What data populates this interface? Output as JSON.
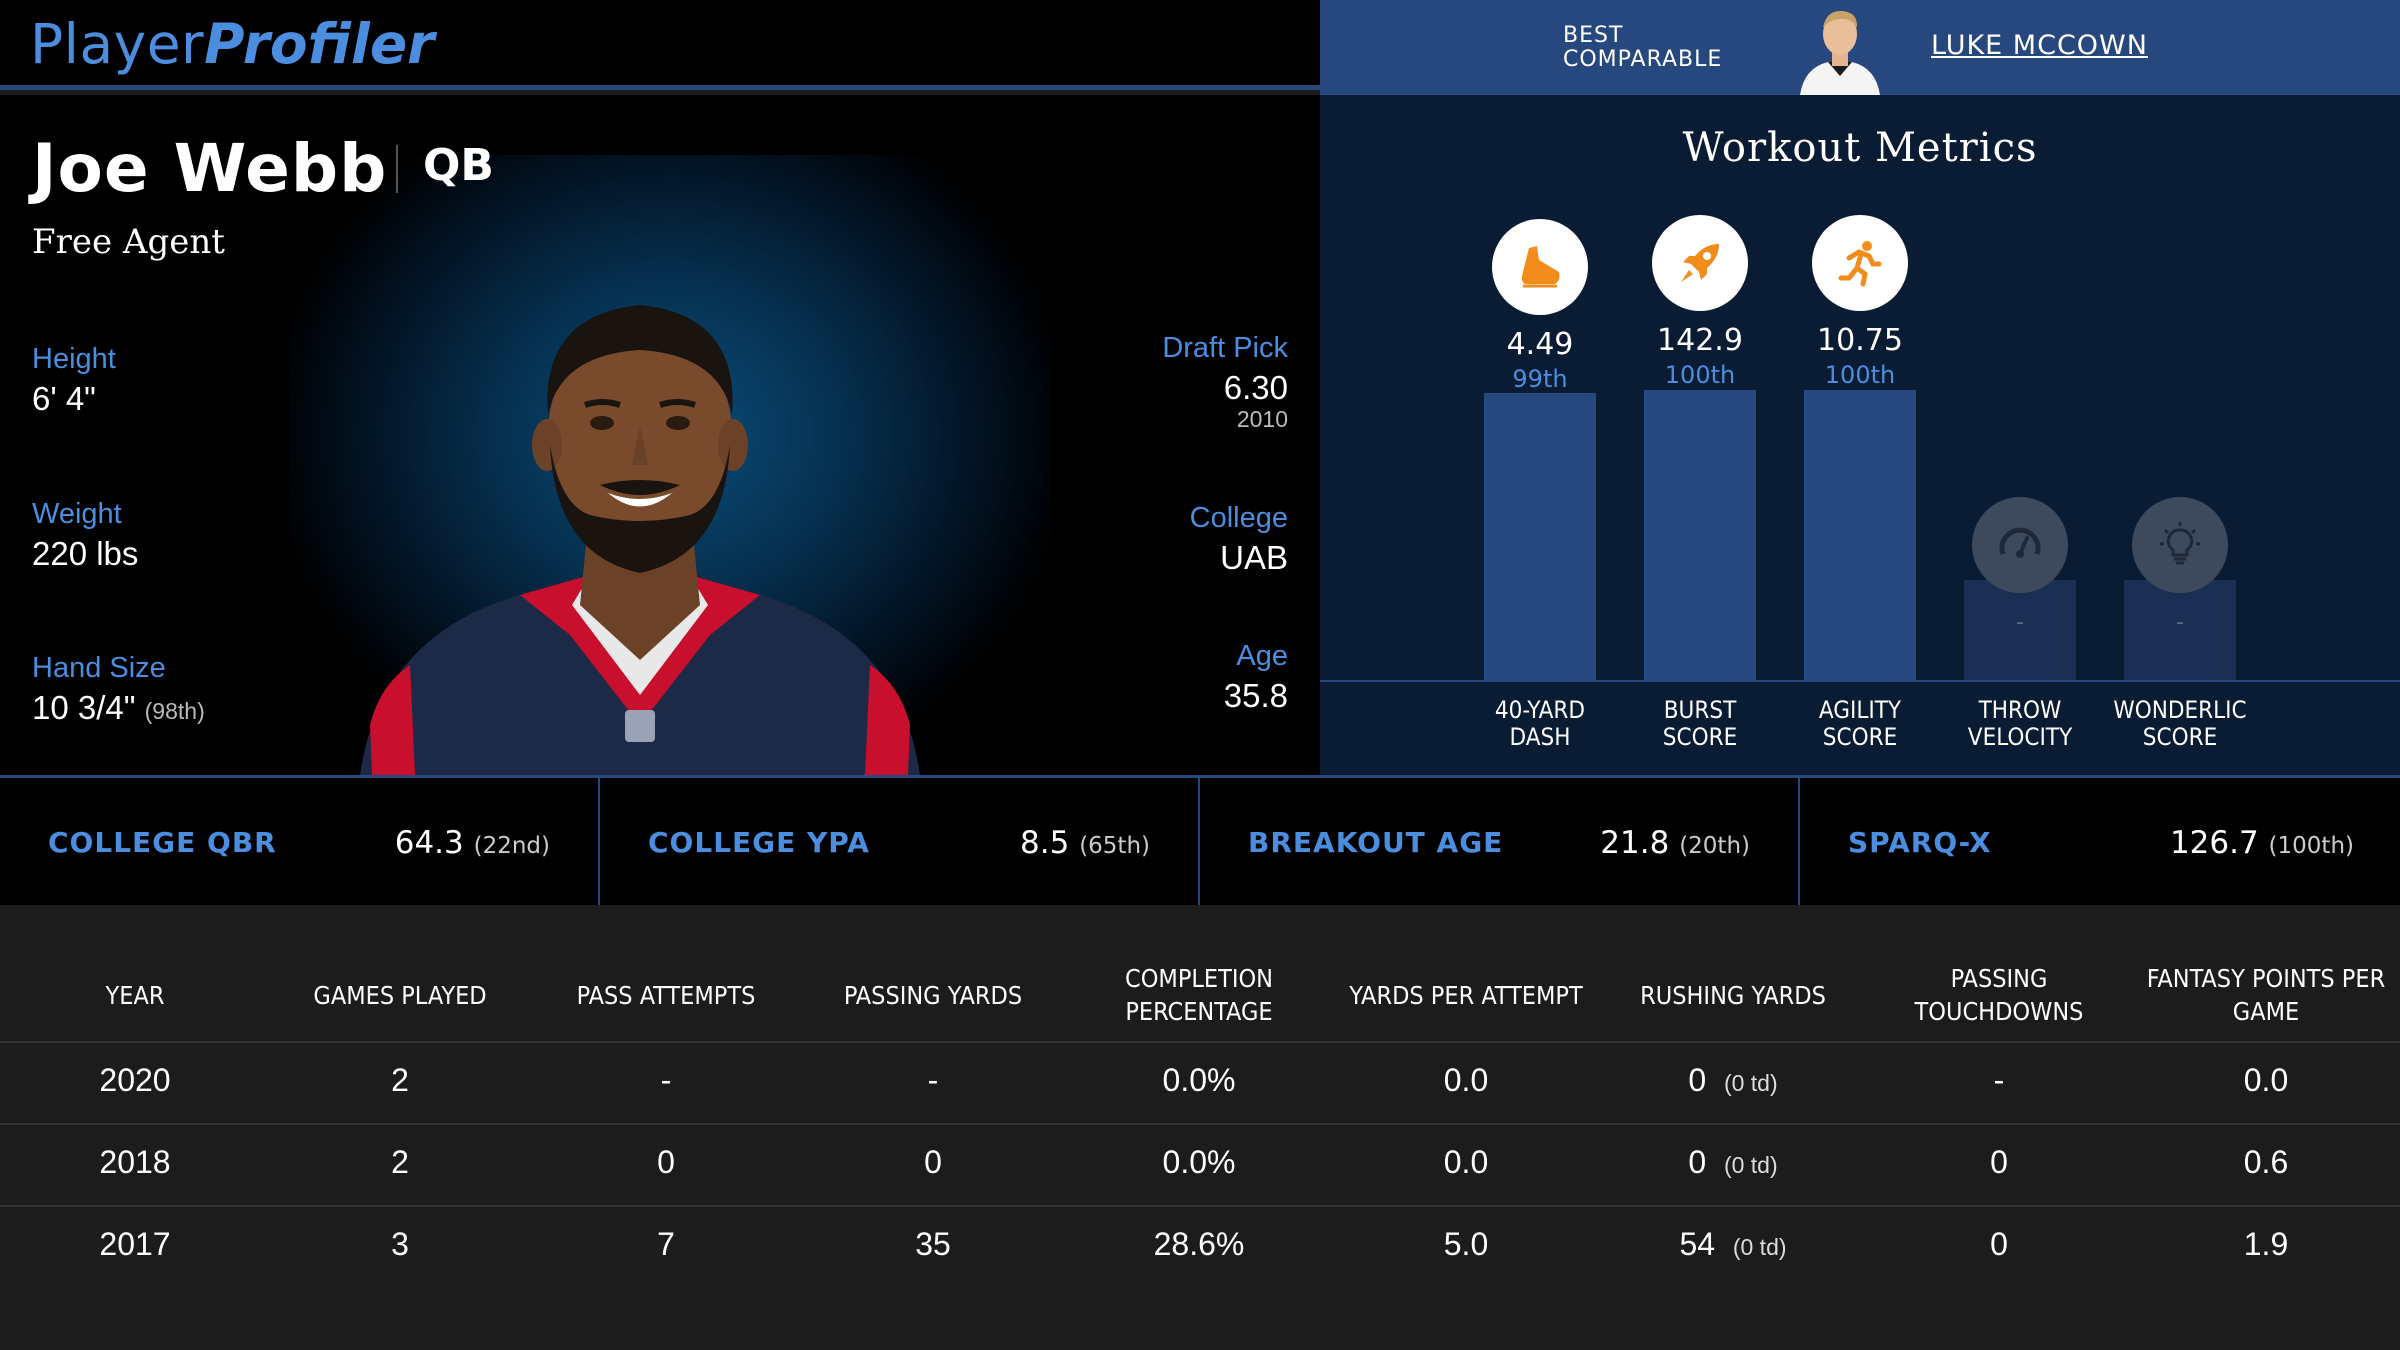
{
  "header": {
    "logo_part1": "Player",
    "logo_part2": "Profiler",
    "best_comparable_label": "BEST\nCOMPARABLE",
    "best_comparable_name": "LUKE MCCOWN"
  },
  "player": {
    "name": "Joe Webb",
    "position": "QB",
    "team": "Free Agent",
    "height_label": "Height",
    "height": "6' 4\"",
    "weight_label": "Weight",
    "weight": "220 lbs",
    "hand_label": "Hand Size",
    "hand": "10 3/4\"",
    "hand_pct": "(98th)",
    "draft_label": "Draft Pick",
    "draft_pick": "6.30",
    "draft_year": "2010",
    "college_label": "College",
    "college": "UAB",
    "age_label": "Age",
    "age": "35.8"
  },
  "workout": {
    "title": "Workout Metrics",
    "bars": [
      {
        "label_1": "40-YARD",
        "label_2": "DASH",
        "value": "4.49",
        "pct": "99th",
        "pct_num": 99,
        "icon": "shoe-icon"
      },
      {
        "label_1": "BURST",
        "label_2": "SCORE",
        "value": "142.9",
        "pct": "100th",
        "pct_num": 100,
        "icon": "rocket-icon"
      },
      {
        "label_1": "AGILITY",
        "label_2": "SCORE",
        "value": "10.75",
        "pct": "100th",
        "pct_num": 100,
        "icon": "runner-icon"
      },
      {
        "label_1": "THROW",
        "label_2": "VELOCITY",
        "value": "-",
        "icon": "speedometer-icon"
      },
      {
        "label_1": "WONDERLIC",
        "label_2": "SCORE",
        "value": "-",
        "icon": "lightbulb-icon"
      }
    ]
  },
  "stats": [
    {
      "name": "COLLEGE QBR",
      "value": "64.3",
      "pct": "(22nd)"
    },
    {
      "name": "COLLEGE YPA",
      "value": "8.5",
      "pct": "(65th)"
    },
    {
      "name": "BREAKOUT AGE",
      "value": "21.8",
      "pct": "(20th)"
    },
    {
      "name": "SPARQ-X",
      "value": "126.7",
      "pct": "(100th)"
    }
  ],
  "table": {
    "headers": [
      "YEAR",
      "GAMES PLAYED",
      "PASS ATTEMPTS",
      "PASSING YARDS",
      "COMPLETION PERCENTAGE",
      "YARDS PER ATTEMPT",
      "RUSHING YARDS",
      "PASSING TOUCHDOWNS",
      "FANTASY POINTS PER GAME"
    ],
    "rows": [
      {
        "year": "2020",
        "games": "2",
        "attempts": "-",
        "yards": "-",
        "comp": "0.0%",
        "ypa": "0.0",
        "rush": "0",
        "rush_td": "(0 td)",
        "td": "-",
        "fppg": "0.0"
      },
      {
        "year": "2018",
        "games": "2",
        "attempts": "0",
        "yards": "0",
        "comp": "0.0%",
        "ypa": "0.0",
        "rush": "0",
        "rush_td": "(0 td)",
        "td": "0",
        "fppg": "0.6"
      },
      {
        "year": "2017",
        "games": "3",
        "attempts": "7",
        "yards": "35",
        "comp": "28.6%",
        "ypa": "5.0",
        "rush": "54",
        "rush_td": "(0 td)",
        "td": "0",
        "fppg": "1.9"
      }
    ]
  }
}
